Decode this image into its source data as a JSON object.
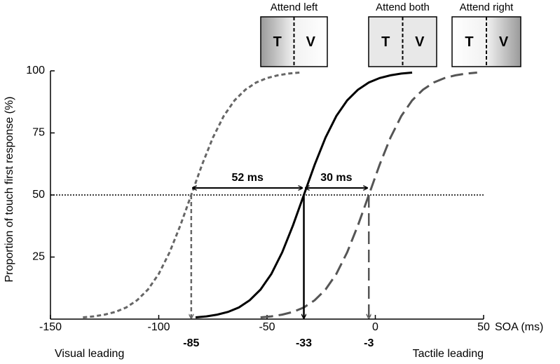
{
  "chart_data": {
    "type": "line",
    "y_label": "Proportion of touch first response (%)",
    "x_label": "SOA (ms)",
    "left_note": "Visual leading",
    "right_note": "Tactile leading",
    "xlim": [
      -150,
      50
    ],
    "ylim": [
      0,
      100
    ],
    "xticks": [
      -150,
      -100,
      -50,
      0,
      50
    ],
    "yticks": [
      25,
      50,
      75,
      100
    ],
    "reference_y": 50,
    "thresholds": [
      -85,
      -33,
      -3
    ],
    "differences": [
      {
        "value": 52,
        "label": "52 ms"
      },
      {
        "value": 30,
        "label": "30 ms"
      }
    ],
    "panels": [
      {
        "title": "Attend left",
        "left": "T",
        "right": "V",
        "shade": "left"
      },
      {
        "title": "Attend both",
        "left": "T",
        "right": "V",
        "shade": "both"
      },
      {
        "title": "Attend right",
        "left": "T",
        "right": "V",
        "shade": "right"
      }
    ],
    "series": [
      {
        "color": "#666666",
        "style": "short-dash",
        "x": [
          -135,
          -130,
          -125,
          -120,
          -115,
          -110,
          -105,
          -100,
          -95,
          -90,
          -85,
          -80,
          -75,
          -70,
          -65,
          -60,
          -55,
          -50,
          -45,
          -40,
          -35
        ],
        "values": [
          0.7,
          1.1,
          1.8,
          2.9,
          4.7,
          7.6,
          11.9,
          18.2,
          26.9,
          37.8,
          50,
          62.2,
          73.1,
          81.8,
          88.1,
          92.4,
          95.3,
          97.1,
          98.2,
          98.9,
          99.3
        ]
      },
      {
        "color": "#000000",
        "style": "solid",
        "x": [
          -83,
          -78,
          -73,
          -68,
          -63,
          -58,
          -53,
          -48,
          -43,
          -38,
          -33,
          -28,
          -23,
          -18,
          -13,
          -8,
          -3,
          2,
          7,
          12,
          17
        ],
        "values": [
          0.7,
          1.1,
          1.8,
          2.9,
          4.7,
          7.6,
          11.9,
          18.2,
          26.9,
          37.8,
          50,
          62.2,
          73.1,
          81.8,
          88.1,
          92.4,
          95.3,
          97.1,
          98.2,
          98.9,
          99.3
        ]
      },
      {
        "color": "#555555",
        "style": "long-dash",
        "x": [
          -53,
          -48,
          -43,
          -38,
          -33,
          -28,
          -23,
          -18,
          -13,
          -8,
          -3,
          2,
          7,
          12,
          17,
          22,
          27,
          32,
          37,
          42,
          47
        ],
        "values": [
          0.7,
          1.1,
          1.8,
          2.9,
          4.7,
          7.6,
          11.9,
          18.2,
          26.9,
          37.8,
          50,
          62.2,
          73.1,
          81.8,
          88.1,
          92.4,
          95.3,
          97.1,
          98.2,
          98.9,
          99.3
        ]
      }
    ]
  }
}
